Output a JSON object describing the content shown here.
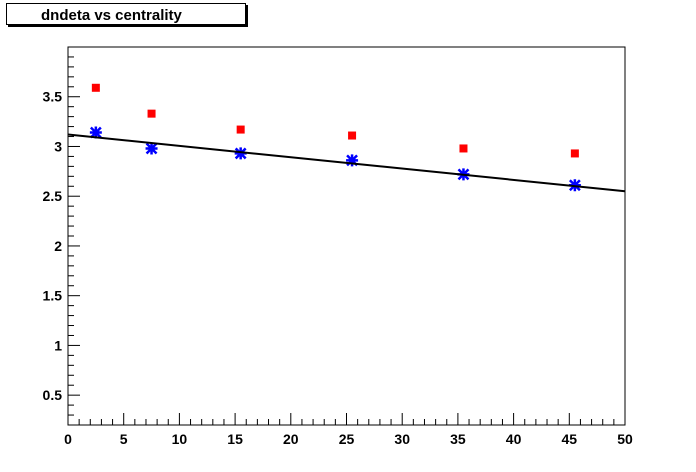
{
  "chart_data": {
    "type": "scatter",
    "title": "dndeta vs centrality",
    "xlabel": "",
    "ylabel": "",
    "xlim": [
      0,
      50
    ],
    "ylim": [
      0.2,
      4.0
    ],
    "x_ticks": [
      0,
      5,
      10,
      15,
      20,
      25,
      30,
      35,
      40,
      45,
      50
    ],
    "x_tick_labels": [
      "0",
      "5",
      "10",
      "15",
      "20",
      "25",
      "30",
      "35",
      "40",
      "45",
      "50"
    ],
    "y_ticks": [
      0.5,
      1,
      1.5,
      2,
      2.5,
      3,
      3.5
    ],
    "y_tick_labels": [
      "0.5",
      "1",
      "1.5",
      "2",
      "2.5",
      "3",
      "3.5"
    ],
    "grid": false,
    "series": [
      {
        "name": "red squares",
        "marker": "square",
        "color": "#ff0000",
        "x": [
          2.5,
          7.5,
          15.5,
          25.5,
          35.5,
          45.5
        ],
        "y": [
          3.59,
          3.33,
          3.17,
          3.11,
          2.98,
          2.93
        ]
      },
      {
        "name": "blue stars",
        "marker": "star",
        "color": "#0000ff",
        "x": [
          2.5,
          7.5,
          15.5,
          25.5,
          35.5,
          45.5
        ],
        "y": [
          3.14,
          2.98,
          2.93,
          2.86,
          2.72,
          2.61
        ]
      },
      {
        "name": "linear fit",
        "marker": "line",
        "color": "#000000",
        "x": [
          0,
          50
        ],
        "y": [
          3.12,
          2.55
        ]
      }
    ]
  }
}
